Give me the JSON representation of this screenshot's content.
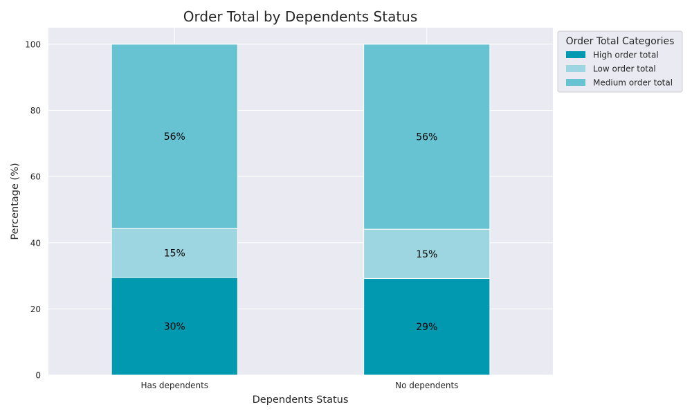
{
  "chart_data": {
    "type": "bar",
    "stacked": true,
    "title": "Order Total by Dependents Status",
    "xlabel": "Dependents Status",
    "ylabel": "Percentage (%)",
    "categories": [
      "Has dependents",
      "No dependents"
    ],
    "ylim": [
      0,
      105
    ],
    "yticks": [
      0,
      20,
      40,
      60,
      80,
      100
    ],
    "grid": true,
    "legend": {
      "title": "Order Total Categories",
      "placement": "upper-right-outside"
    },
    "series": [
      {
        "name": "High order total",
        "values": [
          29.5,
          29.2
        ],
        "labels": [
          "30%",
          "29%"
        ],
        "color": "#0099b0"
      },
      {
        "name": "Low order total",
        "values": [
          14.8,
          14.9
        ],
        "labels": [
          "15%",
          "15%"
        ],
        "color": "#9dd6e0"
      },
      {
        "name": "Medium order total",
        "values": [
          55.7,
          55.9
        ],
        "labels": [
          "56%",
          "56%"
        ],
        "color": "#67c2d2"
      }
    ],
    "colors": {
      "plot_background": "#eaeaf2",
      "grid": "#ffffff"
    }
  }
}
